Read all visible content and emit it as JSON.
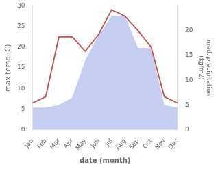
{
  "chart_data": {
    "type": "line",
    "categories": [
      "Jan",
      "Feb",
      "Mar",
      "Apr",
      "May",
      "Jun",
      "Jul",
      "Aug",
      "Sep",
      "Oct",
      "Nov",
      "Dec"
    ],
    "series": [
      {
        "type": "line",
        "color": "#c0504d",
        "values": [
          6.5,
          8.0,
          22.5,
          22.5,
          19.0,
          23.0,
          29.0,
          27.5,
          24.0,
          20.0,
          8.0,
          6.5
        ]
      },
      {
        "type": "area",
        "color": "#c5cef0",
        "axis": "y2",
        "values": [
          4.5,
          4.5,
          5.0,
          6.5,
          14.0,
          19.0,
          23.0,
          23.0,
          16.5,
          16.5,
          5.0,
          4.5
        ]
      }
    ],
    "xlabel": "date (month)",
    "ylabel": "max temp (C)",
    "y2label": "med. precipitation\n(kg/m2)",
    "ylim": [
      0,
      30
    ],
    "yticks": [
      0,
      5,
      10,
      15,
      20,
      25,
      30
    ],
    "y2lim": [
      0,
      25
    ],
    "y2ticks": [
      0,
      5,
      10,
      15,
      20
    ],
    "grid": false
  }
}
